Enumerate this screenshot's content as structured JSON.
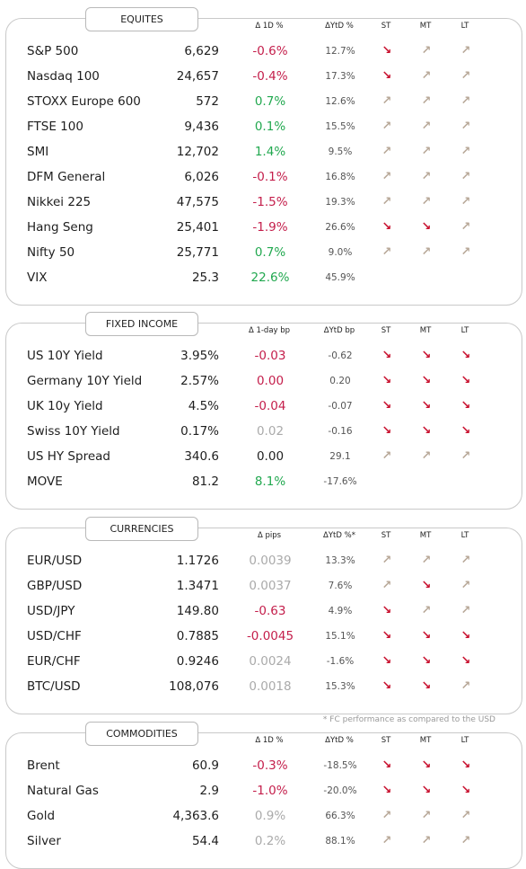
{
  "colors": {
    "negative": "#c41e4b",
    "positive": "#21a84f",
    "neutral": "#aaaaaa",
    "arrow_down": "#c8102e",
    "arrow_up": "#b8a898"
  },
  "icons": {
    "down": "arrow-down-right-icon",
    "up": "arrow-up-right-icon"
  },
  "sections": [
    {
      "title": "EQUITES",
      "headers": {
        "change": "Δ 1D %",
        "ytd": "ΔYtD %",
        "st": "ST",
        "mt": "MT",
        "lt": "LT"
      },
      "rows": [
        {
          "name": "S&P 500",
          "level": "6,629",
          "change": "-0.6%",
          "dir": "neg",
          "ytd": "12.7%",
          "st": "down",
          "mt": "up",
          "lt": "up"
        },
        {
          "name": "Nasdaq 100",
          "level": "24,657",
          "change": "-0.4%",
          "dir": "neg",
          "ytd": "17.3%",
          "st": "down",
          "mt": "up",
          "lt": "up"
        },
        {
          "name": "STOXX Europe 600",
          "level": "572",
          "change": "0.7%",
          "dir": "pos",
          "ytd": "12.6%",
          "st": "up",
          "mt": "up",
          "lt": "up"
        },
        {
          "name": "FTSE 100",
          "level": "9,436",
          "change": "0.1%",
          "dir": "pos",
          "ytd": "15.5%",
          "st": "up",
          "mt": "up",
          "lt": "up"
        },
        {
          "name": "SMI",
          "level": "12,702",
          "change": "1.4%",
          "dir": "pos",
          "ytd": "9.5%",
          "st": "up",
          "mt": "up",
          "lt": "up"
        },
        {
          "name": "DFM General",
          "level": "6,026",
          "change": "-0.1%",
          "dir": "neg",
          "ytd": "16.8%",
          "st": "up",
          "mt": "up",
          "lt": "up"
        },
        {
          "name": "Nikkei 225",
          "level": "47,575",
          "change": "-1.5%",
          "dir": "neg",
          "ytd": "19.3%",
          "st": "up",
          "mt": "up",
          "lt": "up"
        },
        {
          "name": "Hang Seng",
          "level": "25,401",
          "change": "-1.9%",
          "dir": "neg",
          "ytd": "26.6%",
          "st": "down",
          "mt": "down",
          "lt": "up"
        },
        {
          "name": "Nifty  50",
          "level": "25,771",
          "change": "0.7%",
          "dir": "pos",
          "ytd": "9.0%",
          "st": "up",
          "mt": "up",
          "lt": "up"
        },
        {
          "name": "VIX",
          "level": "25.3",
          "change": "22.6%",
          "dir": "pos",
          "ytd": "45.9%",
          "st": "",
          "mt": "",
          "lt": ""
        }
      ]
    },
    {
      "title": "FIXED INCOME",
      "headers": {
        "change": "Δ 1-day bp",
        "ytd": "ΔYtD bp",
        "st": "ST",
        "mt": "MT",
        "lt": "LT"
      },
      "rows": [
        {
          "name": "US 10Y Yield",
          "level": "3.95%",
          "change": "-0.03",
          "dir": "neg",
          "ytd": "-0.62",
          "st": "down",
          "mt": "down",
          "lt": "down"
        },
        {
          "name": "Germany 10Y Yield",
          "level": "2.57%",
          "change": "0.00",
          "dir": "neg",
          "ytd": "0.20",
          "st": "down",
          "mt": "down",
          "lt": "down"
        },
        {
          "name": "UK 10y Yield",
          "level": "4.5%",
          "change": "-0.04",
          "dir": "neg",
          "ytd": "-0.07",
          "st": "down",
          "mt": "down",
          "lt": "down"
        },
        {
          "name": "Swiss 10Y Yield",
          "level": "0.17%",
          "change": "0.02",
          "dir": "grey",
          "ytd": "-0.16",
          "st": "down",
          "mt": "down",
          "lt": "down"
        },
        {
          "name": "US HY Spread",
          "level": "340.6",
          "change": "0.00",
          "dir": "flat",
          "ytd": "29.1",
          "st": "up",
          "mt": "up",
          "lt": "up"
        },
        {
          "name": "MOVE",
          "level": "81.2",
          "change": "8.1%",
          "dir": "pos",
          "ytd": "-17.6%",
          "st": "",
          "mt": "",
          "lt": ""
        }
      ]
    },
    {
      "title": "CURRENCIES",
      "headers": {
        "change": "Δ pips",
        "ytd": "ΔYtD %*",
        "st": "ST",
        "mt": "MT",
        "lt": "LT"
      },
      "rows": [
        {
          "name": "EUR/USD",
          "level": "1.1726",
          "change": "0.0039",
          "dir": "grey",
          "ytd": "13.3%",
          "st": "up",
          "mt": "up",
          "lt": "up"
        },
        {
          "name": "GBP/USD",
          "level": "1.3471",
          "change": "0.0037",
          "dir": "grey",
          "ytd": "7.6%",
          "st": "up",
          "mt": "down",
          "lt": "up"
        },
        {
          "name": "USD/JPY",
          "level": "149.80",
          "change": "-0.63",
          "dir": "neg",
          "ytd": "4.9%",
          "st": "down",
          "mt": "up",
          "lt": "up"
        },
        {
          "name": "USD/CHF",
          "level": "0.7885",
          "change": "-0.0045",
          "dir": "neg",
          "ytd": "15.1%",
          "st": "down",
          "mt": "down",
          "lt": "down"
        },
        {
          "name": "EUR/CHF",
          "level": "0.9246",
          "change": "0.0024",
          "dir": "grey",
          "ytd": "-1.6%",
          "st": "down",
          "mt": "down",
          "lt": "down"
        },
        {
          "name": "BTC/USD",
          "level": "108,076",
          "change": "0.0018",
          "dir": "grey",
          "ytd": "15.3%",
          "st": "down",
          "mt": "down",
          "lt": "up"
        }
      ]
    },
    {
      "title": "COMMODITIES",
      "headers": {
        "change": "Δ 1D %",
        "ytd": "ΔYtD %",
        "st": "ST",
        "mt": "MT",
        "lt": "LT"
      },
      "rows": [
        {
          "name": "Brent",
          "level": "60.9",
          "change": "-0.3%",
          "dir": "neg",
          "ytd": "-18.5%",
          "st": "down",
          "mt": "down",
          "lt": "down"
        },
        {
          "name": "Natural Gas",
          "level": "2.9",
          "change": "-1.0%",
          "dir": "neg",
          "ytd": "-20.0%",
          "st": "down",
          "mt": "down",
          "lt": "down"
        },
        {
          "name": "Gold",
          "level": "4,363.6",
          "change": "0.9%",
          "dir": "grey",
          "ytd": "66.3%",
          "st": "up",
          "mt": "up",
          "lt": "up"
        },
        {
          "name": "Silver",
          "level": "54.4",
          "change": "0.2%",
          "dir": "grey",
          "ytd": "88.1%",
          "st": "up",
          "mt": "up",
          "lt": "up"
        }
      ]
    }
  ],
  "footnote": "* FC performance as compared to the USD"
}
